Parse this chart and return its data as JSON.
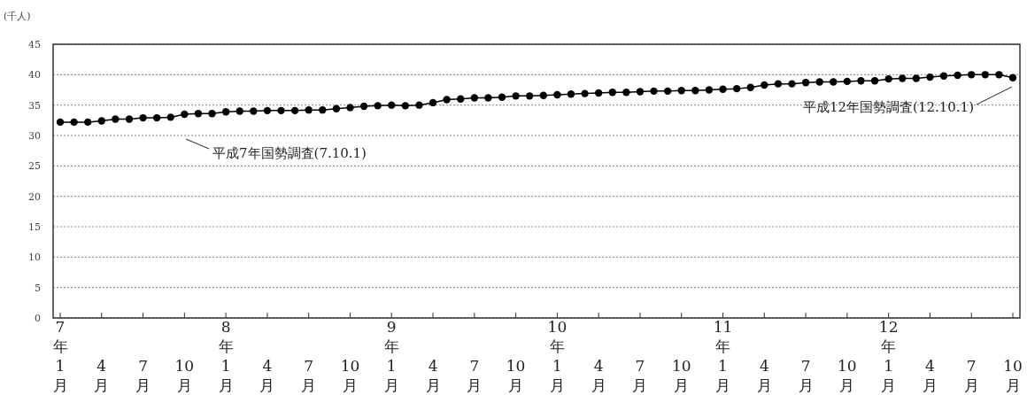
{
  "chart_data": {
    "type": "line",
    "ylabel": "(千人)",
    "categories": [
      "7年1月",
      null,
      null,
      "4月",
      null,
      null,
      "7月",
      null,
      null,
      "10月",
      null,
      null,
      "8年1月",
      null,
      null,
      "4月",
      null,
      null,
      "7月",
      null,
      null,
      "10月",
      null,
      null,
      "9年1月",
      null,
      null,
      "4月",
      null,
      null,
      "7月",
      null,
      null,
      "10月",
      null,
      null,
      "10年1月",
      null,
      null,
      "4月",
      null,
      null,
      "7月",
      null,
      null,
      "10月",
      null,
      null,
      "11年1月",
      null,
      null,
      "4月",
      null,
      null,
      "7月",
      null,
      null,
      "10月",
      null,
      null,
      "12年1月",
      null,
      null,
      "4月",
      null,
      null,
      "7月",
      null,
      null,
      "10月"
    ],
    "series": [
      {
        "color": "#000000",
        "values": [
          32.2,
          32.2,
          32.2,
          32.4,
          32.7,
          32.7,
          32.9,
          32.9,
          33.0,
          33.5,
          33.6,
          33.6,
          33.9,
          34.0,
          34.0,
          34.1,
          34.1,
          34.1,
          34.2,
          34.2,
          34.4,
          34.6,
          34.8,
          34.9,
          35.0,
          34.9,
          35.0,
          35.4,
          35.9,
          36.0,
          36.2,
          36.2,
          36.3,
          36.5,
          36.5,
          36.6,
          36.7,
          36.8,
          36.9,
          37.0,
          37.1,
          37.1,
          37.2,
          37.3,
          37.3,
          37.4,
          37.4,
          37.5,
          37.6,
          37.7,
          37.9,
          38.3,
          38.5,
          38.5,
          38.7,
          38.8,
          38.8,
          38.9,
          39.0,
          39.0,
          39.3,
          39.4,
          39.4,
          39.6,
          39.8,
          39.9,
          40.0,
          40.0,
          40.0,
          39.5
        ]
      }
    ],
    "ylim": [
      0,
      45
    ],
    "yticks": [
      0,
      5,
      10,
      15,
      20,
      25,
      30,
      35,
      40,
      45
    ],
    "grid": "y",
    "marker": "circle",
    "line_style": "solid",
    "annotations": [
      "平成7年国勢調査(7.10.1)",
      "平成12年国勢調査(12.10.1)"
    ]
  }
}
